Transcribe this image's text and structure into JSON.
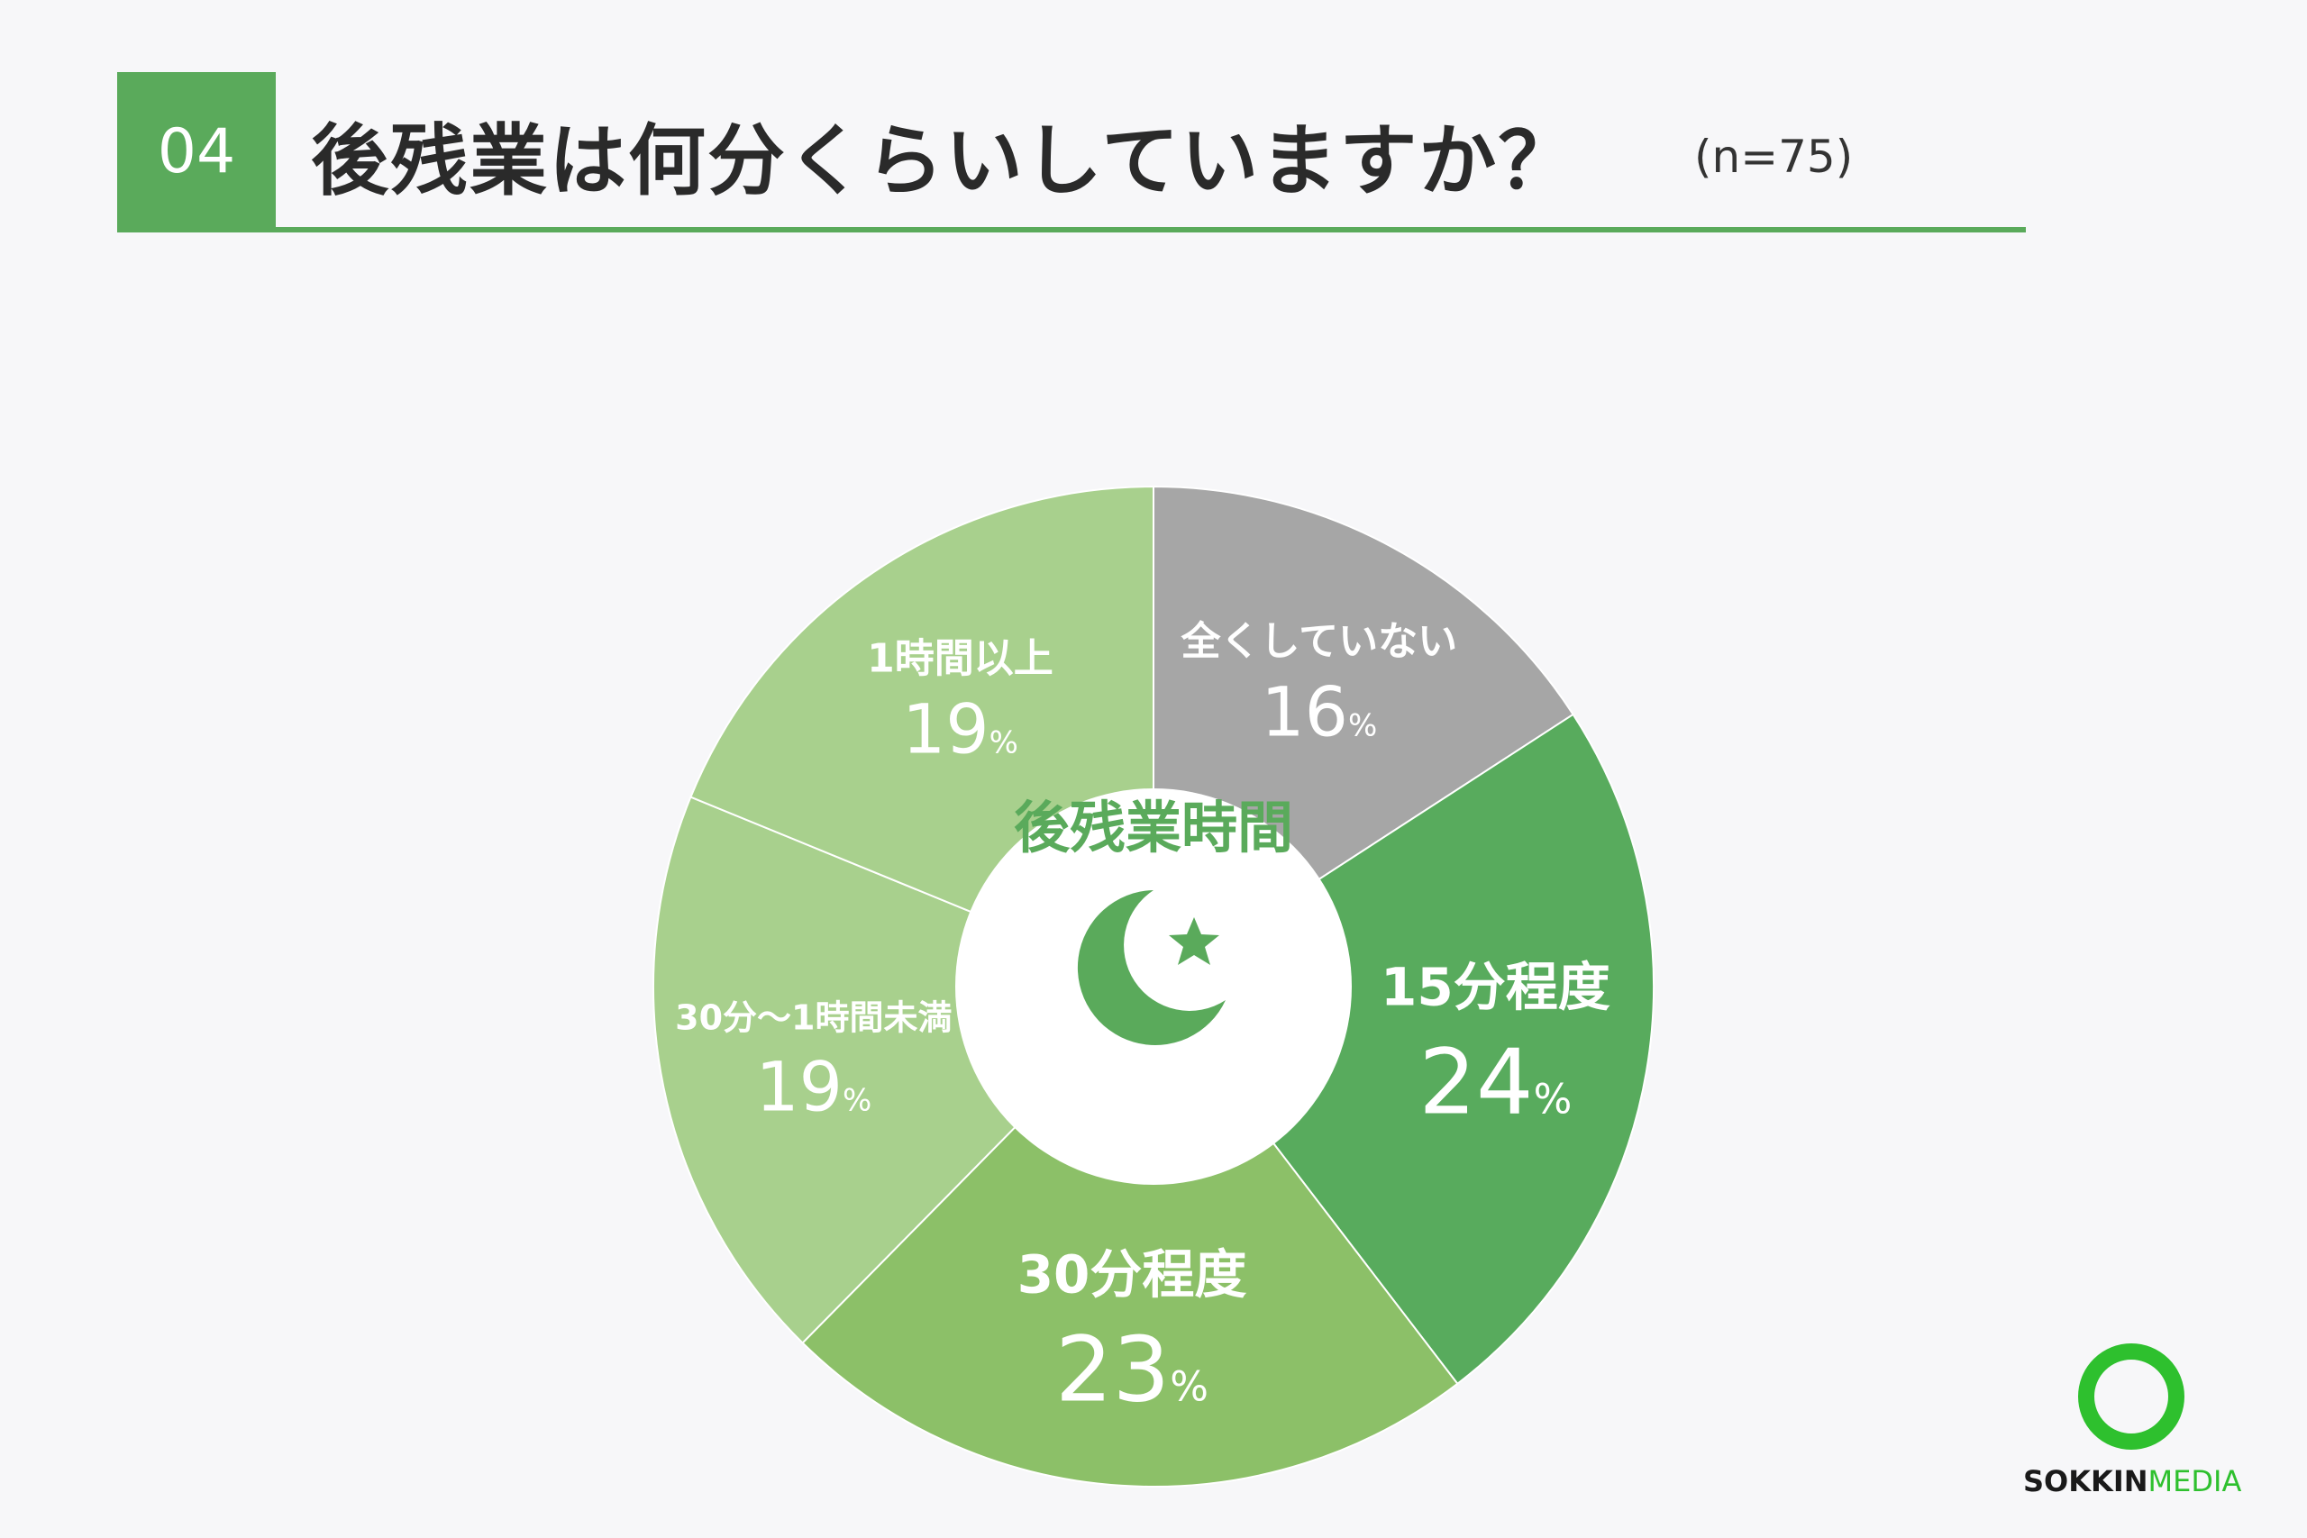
{
  "header": {
    "number": "04",
    "title": "後残業は何分くらいしていますか？",
    "sample_note": "(n=75)"
  },
  "chart_data": {
    "type": "pie",
    "center_label": "後残業時間",
    "slices": [
      {
        "label": "全くしていない",
        "value": 16,
        "color": "#a6a6a6"
      },
      {
        "label": "15分程度",
        "value": 24,
        "color": "#58ab5d"
      },
      {
        "label": "30分程度",
        "value": 23,
        "color": "#8cc068"
      },
      {
        "label": "30分〜1時間未満",
        "value": 19,
        "color": "#a8d08d"
      },
      {
        "label": "1時間以上",
        "value": 19,
        "color": "#a8d08d"
      }
    ],
    "unit": "%"
  },
  "colors": {
    "accent": "#5aaa5b",
    "center_text": "#5aaa5b"
  },
  "logo": {
    "brand_dark": "SOKKIN",
    "brand_light": "MEDIA"
  }
}
